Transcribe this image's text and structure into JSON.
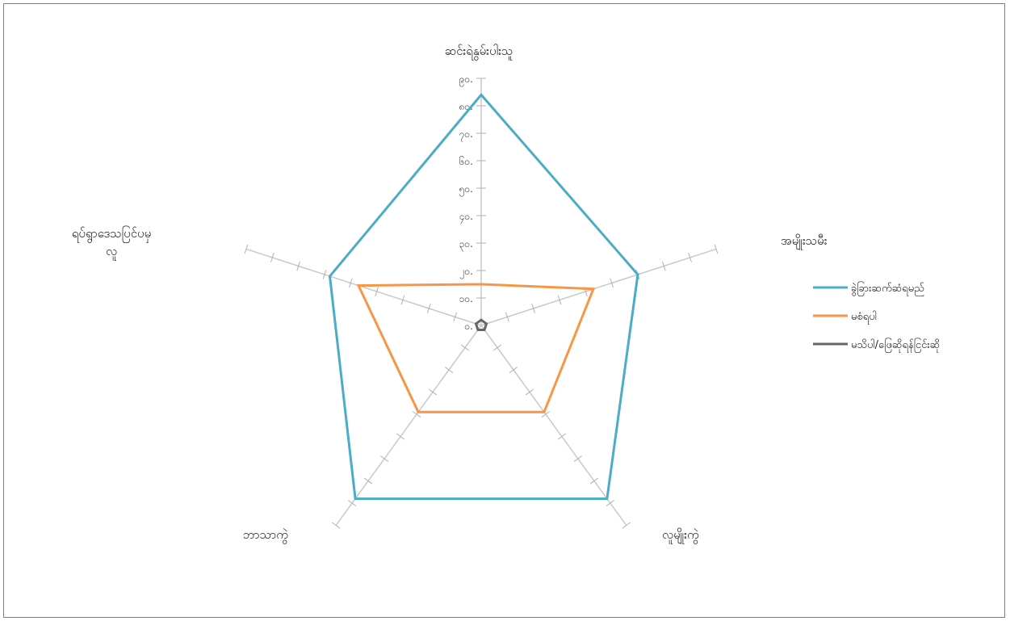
{
  "chart_data": {
    "type": "radar",
    "categories": [
      "ဆင်းရဲနွမ်းပါးသူ",
      "အမျိုးသမီး",
      "လူမျိုးကွဲ",
      "ဘာသာကွဲ",
      "ရပ်ရွာဒေသပြင်ပမှ လူ"
    ],
    "tick_labels": [
      "၀.",
      "၁၀.",
      "၂၀.",
      "၃၀.",
      "၄၀.",
      "၅၀.",
      "၆၀.",
      "၇၀.",
      "၈၀.",
      "၉၀."
    ],
    "ticks": [
      0,
      10,
      20,
      30,
      40,
      50,
      60,
      70,
      80,
      90
    ],
    "rmax": 90,
    "series": [
      {
        "name": "ခွဲခြားဆက်ဆံရမည်",
        "values": [
          84,
          60,
          78,
          78,
          58
        ],
        "color": "#4bacc6"
      },
      {
        "name": "မစံရပါ",
        "values": [
          15,
          43,
          39,
          39,
          47
        ],
        "color": "#f79646"
      },
      {
        "name": "မသိပါ/ဖြေဆိုရန်ငြင်းဆို",
        "values": [
          2,
          2,
          2,
          2,
          2
        ],
        "color": "#666666"
      }
    ],
    "legend_position": "right",
    "grid": false
  }
}
